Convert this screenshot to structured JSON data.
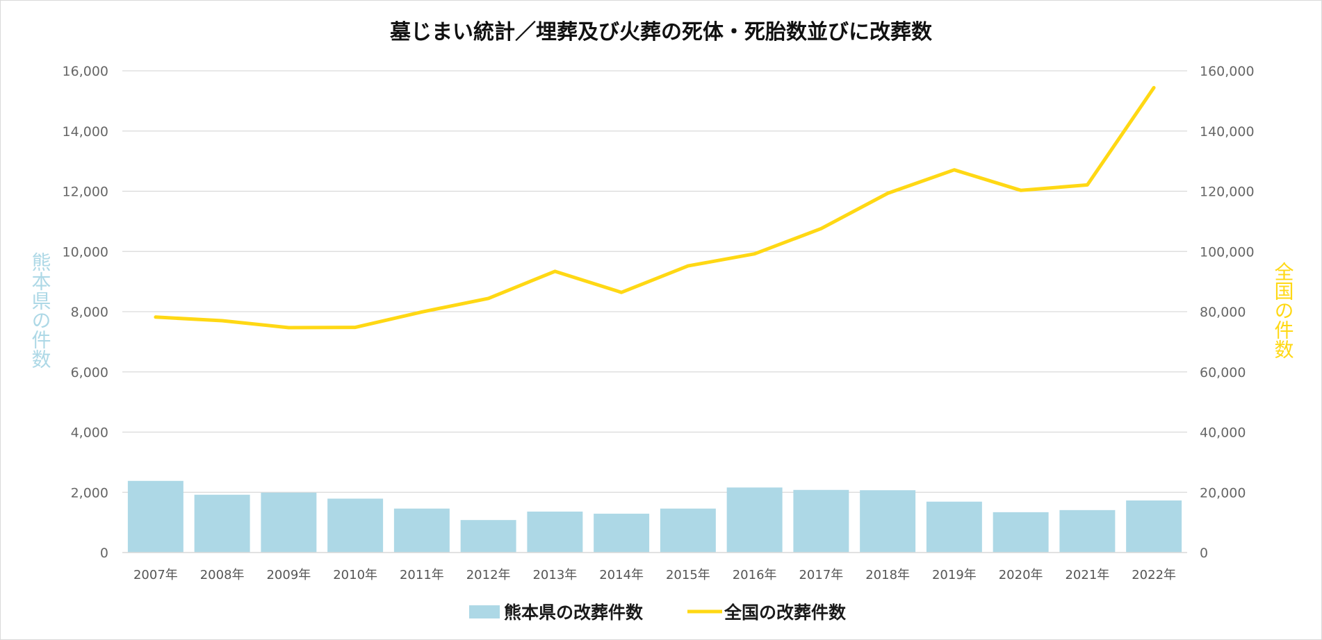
{
  "chart_data": {
    "type": "bar",
    "title": "墓じまい統計／埋葬及び火葬の死体・死胎数並びに改葬数",
    "categories": [
      "2007年",
      "2008年",
      "2009年",
      "2010年",
      "2011年",
      "2012年",
      "2013年",
      "2014年",
      "2015年",
      "2016年",
      "2017年",
      "2018年",
      "2019年",
      "2020年",
      "2021年",
      "2022年"
    ],
    "series": [
      {
        "name": "熊本県の改葬件数",
        "type": "bar",
        "axis": "left",
        "color": "#add8e6",
        "values": [
          2380,
          1920,
          1990,
          1790,
          1460,
          1080,
          1360,
          1290,
          1460,
          2160,
          2080,
          2070,
          1690,
          1340,
          1410,
          1730
        ]
      },
      {
        "name": "全国の改葬件数",
        "type": "line",
        "axis": "right",
        "color": "#ffd814",
        "values": [
          78200,
          77000,
          74700,
          74800,
          79900,
          84400,
          93400,
          86400,
          95200,
          99200,
          107600,
          119300,
          127100,
          120300,
          122100,
          154400
        ]
      }
    ],
    "y_left": {
      "label": "熊本県の件数",
      "color": "#add8e6",
      "ylim": [
        0,
        16000
      ],
      "ticks": [
        0,
        2000,
        4000,
        6000,
        8000,
        10000,
        12000,
        14000,
        16000
      ],
      "tick_labels": [
        "0",
        "2,000",
        "4,000",
        "6,000",
        "8,000",
        "10,000",
        "12,000",
        "14,000",
        "16,000"
      ]
    },
    "y_right": {
      "label": "全国の件数",
      "color": "#ffd814",
      "ylim": [
        0,
        160000
      ],
      "ticks": [
        0,
        20000,
        40000,
        60000,
        80000,
        100000,
        120000,
        140000,
        160000
      ],
      "tick_labels": [
        "0",
        "20,000",
        "40,000",
        "60,000",
        "80,000",
        "100,000",
        "120,000",
        "140,000",
        "160,000"
      ]
    },
    "grid": true,
    "legend_position": "bottom"
  }
}
